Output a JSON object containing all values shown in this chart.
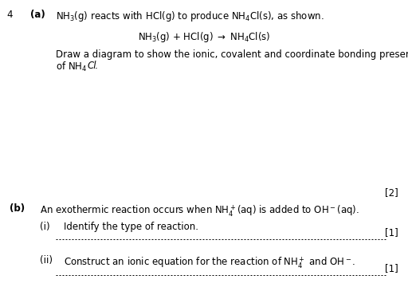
{
  "bg_color": "#ffffff",
  "text_color": "#000000",
  "question_number": "4",
  "part_a_label": "(a)",
  "part_a_intro": "NH$_3$(g) reacts with HCl(g) to produce NH$_4$Cl(s), as shown.",
  "equation": "NH$_3$(g) + HCl(g) $\\rightarrow$ NH$_4$Cl(s)",
  "draw_instruction": "Draw a diagram to show the ionic, covalent and coordinate bonding present in a formula unit",
  "draw_instruction2_prefix": "of NH$_4$",
  "draw_instruction2_italic": "Cl",
  "draw_instruction2_suffix": ".",
  "marks_a": "[2]",
  "part_b_label": "(b)",
  "part_b_intro": "An exothermic reaction occurs when NH$_4^+$(aq) is added to OH$^-$(aq).",
  "part_bi_label": "(i)",
  "part_bi_text": "Identify the type of reaction.",
  "marks_bi": "[1]",
  "part_bii_label": "(ii)",
  "part_bii_text": "Construct an ionic equation for the reaction of NH$_4^+$ and OH$^-$.",
  "marks_bii": "[1]",
  "font_size_main": 8.5,
  "font_size_eq": 8.5
}
